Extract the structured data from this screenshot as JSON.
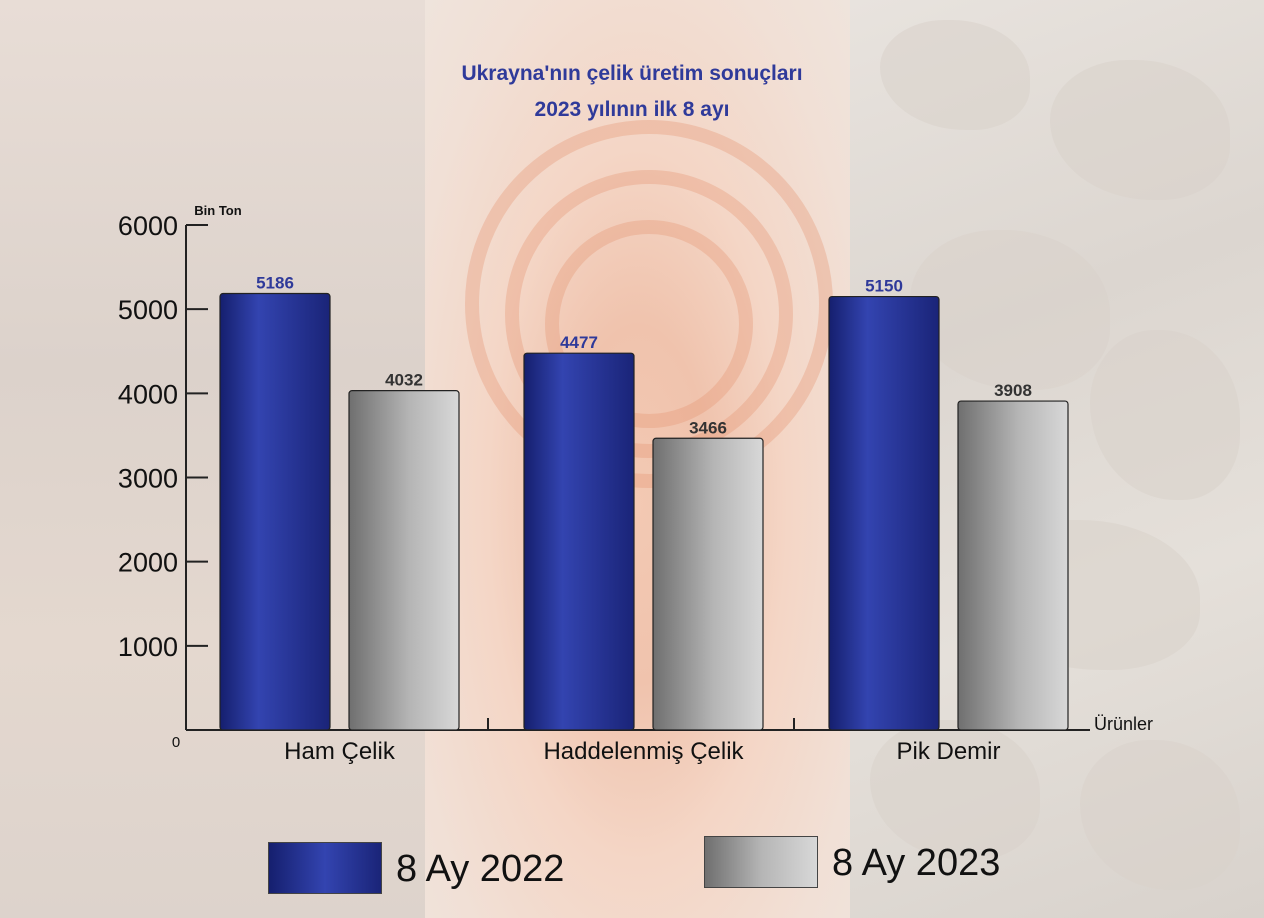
{
  "chart_data": {
    "type": "bar",
    "title": "Ukrayna'nın çelik üretim sonuçları",
    "subtitle": "2023 yılının ilk 8 ayı",
    "ylabel": "Bin Ton",
    "xlabel": "Ürünler",
    "ylim": [
      0,
      6000
    ],
    "yticks": [
      "6000",
      "5000",
      "4000",
      "3000",
      "2000",
      "1000",
      "0"
    ],
    "categories": [
      "Ham Çelik",
      "Haddelenmiş Çelik",
      "Pik Demir"
    ],
    "series": [
      {
        "name": "8 Ay 2022",
        "values": [
          5186,
          4477,
          5150
        ],
        "color": "#2d3a9e"
      },
      {
        "name": "8 Ay 2023",
        "values": [
          4032,
          3466,
          3908
        ],
        "color": "#8e8e8e"
      }
    ],
    "grid": false,
    "legend": "bottom"
  }
}
